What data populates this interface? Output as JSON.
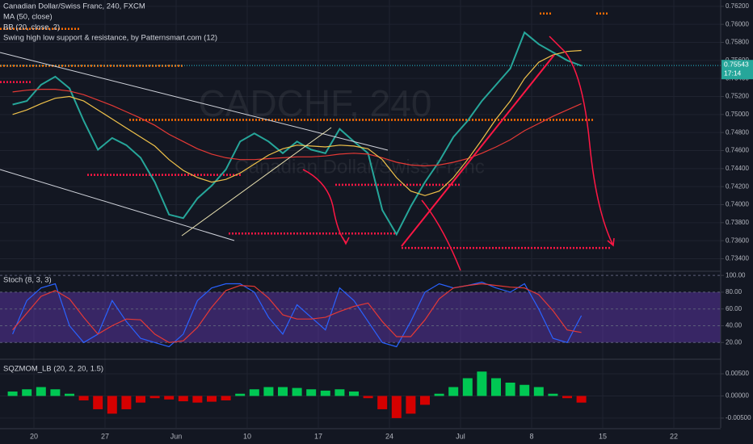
{
  "chart_data": [
    {
      "type": "line",
      "title": "Canadian Dollar/Swiss Franc, 240, FXCM",
      "watermark": "CADCHF, 240",
      "watermark_subtitle": "Canadian Dollar/Swiss Franc",
      "series": [
        {
          "color": "#26a69a",
          "values": [
            0.7511,
            0.7515,
            0.7533,
            0.7542,
            0.7529,
            0.7493,
            0.7461,
            0.7474,
            0.7466,
            0.7452,
            0.7425,
            0.7389,
            0.7385,
            0.7407,
            0.7421,
            0.7439,
            0.747,
            0.7479,
            0.747,
            0.7457,
            0.747,
            0.7461,
            0.7457,
            0.7484,
            0.747,
            0.7457,
            0.7394,
            0.7367,
            0.7398,
            0.7425,
            0.7448,
            0.7475,
            0.7493,
            0.7515,
            0.7533,
            0.7551,
            0.7591,
            0.7578,
            0.7569,
            0.756,
            0.7554,
            null,
            null,
            null,
            null,
            null,
            null,
            null,
            null,
            null,
            null,
            null
          ]
        },
        {
          "name": "MA (50, close)",
          "color": "#e53935",
          "values": [
            0.7525,
            0.7527,
            0.7528,
            0.7528,
            0.7526,
            0.7522,
            0.7516,
            0.751,
            0.7503,
            0.7496,
            0.7488,
            0.7478,
            0.747,
            0.7462,
            0.7456,
            0.7452,
            0.745,
            0.745,
            0.7451,
            0.7452,
            0.7453,
            0.7453,
            0.7454,
            0.7456,
            0.7457,
            0.7456,
            0.7452,
            0.7447,
            0.7444,
            0.7443,
            0.7444,
            0.7447,
            0.7451,
            0.7457,
            0.7464,
            0.7472,
            0.7482,
            0.749,
            0.7498,
            0.7505,
            0.7512,
            null,
            null,
            null,
            null,
            null,
            null,
            null,
            null,
            null,
            null,
            null
          ]
        },
        {
          "name": "BB (20, close, 2)",
          "color": "#f0c24a",
          "values": [
            0.75,
            0.7505,
            0.7512,
            0.7518,
            0.752,
            0.7515,
            0.7505,
            0.7495,
            0.7485,
            0.7475,
            0.7465,
            0.745,
            0.7438,
            0.743,
            0.7425,
            0.7428,
            0.7435,
            0.7445,
            0.7455,
            0.7462,
            0.7466,
            0.7465,
            0.7464,
            0.7466,
            0.7465,
            0.7462,
            0.745,
            0.743,
            0.7415,
            0.741,
            0.7415,
            0.743,
            0.745,
            0.7472,
            0.7495,
            0.7515,
            0.754,
            0.7558,
            0.7566,
            0.757,
            0.7571,
            null,
            null,
            null,
            null,
            null,
            null,
            null,
            null,
            null,
            null,
            null
          ]
        }
      ],
      "levels_title": "Swing high low support & resistance, by Patternsmart.com (12)",
      "levels": [
        {
          "value": 0.7612,
          "color": "#ff6d00"
        },
        {
          "value": 0.7595,
          "color": "#ff6d00"
        },
        {
          "value": 0.7554,
          "color": "#ff6d00"
        },
        {
          "value": 0.7536,
          "color": "#ff1744"
        },
        {
          "value": 0.7494,
          "color": "#ff6d00"
        },
        {
          "value": 0.7433,
          "color": "#ff1744"
        },
        {
          "value": 0.7422,
          "color": "#ff1744"
        },
        {
          "value": 0.7368,
          "color": "#ff1744"
        },
        {
          "value": 0.7352,
          "color": "#ff1744"
        }
      ],
      "last_price": {
        "value": 0.75543,
        "label": "0.75543"
      },
      "countdown": "17:14",
      "ylim": [
        0.7327,
        0.7627
      ],
      "yticks": [
        {
          "value": 0.734,
          "label": "0.73400"
        },
        {
          "value": 0.736,
          "label": "0.73600"
        },
        {
          "value": 0.738,
          "label": "0.73800"
        },
        {
          "value": 0.74,
          "label": "0.74000"
        },
        {
          "value": 0.742,
          "label": "0.74200"
        },
        {
          "value": 0.744,
          "label": "0.74400"
        },
        {
          "value": 0.746,
          "label": "0.74600"
        },
        {
          "value": 0.748,
          "label": "0.74800"
        },
        {
          "value": 0.75,
          "label": "0.75000"
        },
        {
          "value": 0.752,
          "label": "0.75200"
        },
        {
          "value": 0.754,
          "label": "0.75400"
        },
        {
          "value": 0.756,
          "label": "0.75600"
        },
        {
          "value": 0.758,
          "label": "0.75800"
        },
        {
          "value": 0.76,
          "label": "0.76000"
        },
        {
          "value": 0.762,
          "label": "0.76200"
        }
      ],
      "grid": true
    },
    {
      "type": "line",
      "title": "Stoch (8, 3, 3)",
      "series": [
        {
          "color": "#2962ff",
          "values": [
            30,
            70,
            85,
            90,
            40,
            20,
            30,
            70,
            45,
            25,
            20,
            15,
            30,
            70,
            85,
            90,
            90,
            80,
            50,
            30,
            65,
            50,
            35,
            85,
            70,
            45,
            20,
            15,
            45,
            80,
            90,
            85,
            88,
            92,
            85,
            80,
            90,
            60,
            25,
            20,
            52,
            null,
            null,
            null,
            null,
            null,
            null,
            null,
            null,
            null,
            null,
            null
          ]
        },
        {
          "color": "#e53935",
          "values": [
            35,
            55,
            75,
            82,
            72,
            50,
            30,
            40,
            48,
            47,
            30,
            20,
            22,
            38,
            62,
            82,
            88,
            87,
            73,
            53,
            48,
            48,
            50,
            57,
            63,
            67,
            45,
            27,
            27,
            47,
            72,
            85,
            88,
            90,
            88,
            86,
            85,
            77,
            58,
            35,
            32,
            null,
            null,
            null,
            null,
            null,
            null,
            null,
            null,
            null,
            null,
            null
          ]
        }
      ],
      "band": [
        20,
        80
      ],
      "band_color": "#673ab7",
      "ylim": [
        1,
        104
      ],
      "yticks": [
        {
          "value": 20,
          "label": "20.00"
        },
        {
          "value": 40,
          "label": "40.00"
        },
        {
          "value": 60,
          "label": "60.00"
        },
        {
          "value": 80,
          "label": "80.00"
        },
        {
          "value": 100,
          "label": "100.00"
        }
      ],
      "grid": true
    },
    {
      "type": "bar",
      "title": "SQZMOM_LB (20, 2, 20, 1.5)",
      "categories": [
        null,
        null,
        "20",
        null,
        null,
        null,
        null,
        "27",
        null,
        null,
        null,
        null,
        "Jun",
        null,
        null,
        null,
        null,
        "10",
        null,
        null,
        null,
        null,
        "17",
        null,
        null,
        null,
        null,
        "24",
        null,
        null,
        null,
        null,
        "Jul",
        null,
        null,
        null,
        null,
        "8",
        null,
        null,
        null,
        null,
        "15",
        null,
        null,
        null,
        null,
        "22",
        null,
        null,
        null,
        null
      ],
      "values": [
        0.001,
        0.0015,
        0.002,
        0.0015,
        0.0005,
        -0.001,
        -0.003,
        -0.004,
        -0.003,
        -0.0015,
        -0.0005,
        -0.0008,
        -0.0012,
        -0.0015,
        -0.0013,
        -0.001,
        0.0005,
        0.0015,
        0.002,
        0.002,
        0.0018,
        0.0015,
        0.0012,
        0.0015,
        0.001,
        -0.0005,
        -0.003,
        -0.005,
        -0.004,
        -0.002,
        0.0005,
        0.002,
        0.004,
        0.0055,
        0.004,
        0.003,
        0.0025,
        0.002,
        0.0005,
        -0.0005,
        -0.0015,
        null,
        null,
        null,
        null,
        null,
        null,
        null,
        null,
        null,
        null,
        null
      ],
      "up_color": "#00c853",
      "down_color": "#d50000",
      "ylim": [
        -0.0072,
        0.0081
      ],
      "yticks": [
        {
          "value": -0.005,
          "label": "-0.00500"
        },
        {
          "value": 0,
          "label": "0.00000"
        },
        {
          "value": 0.005,
          "label": "0.00500"
        }
      ],
      "grid": true
    }
  ]
}
